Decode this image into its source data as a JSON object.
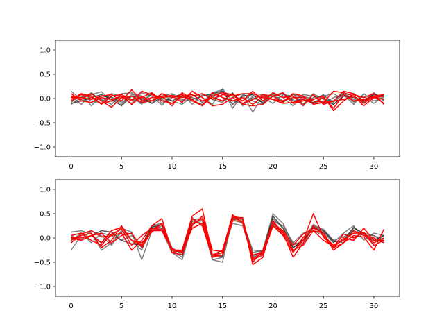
{
  "chart_data": [
    {
      "type": "line",
      "title": "",
      "xlabel": "",
      "ylabel": "",
      "xlim": [
        -1.55,
        32.55
      ],
      "ylim": [
        -1.2,
        1.2
      ],
      "xticks": [
        0,
        5,
        10,
        15,
        20,
        25,
        30
      ],
      "yticks": [
        -1.0,
        -0.5,
        0.0,
        0.5,
        1.0
      ],
      "xtick_labels": [
        "0",
        "5",
        "10",
        "15",
        "20",
        "25",
        "30"
      ],
      "ytick_labels": [
        "−1.0",
        "−0.5",
        "0.0",
        "0.5",
        "1.0"
      ],
      "grid": false,
      "x": [
        0,
        1,
        2,
        3,
        4,
        5,
        6,
        7,
        8,
        9,
        10,
        11,
        12,
        13,
        14,
        15,
        16,
        17,
        18,
        19,
        20,
        21,
        22,
        23,
        24,
        25,
        26,
        27,
        28,
        29,
        30,
        31
      ],
      "series": [
        {
          "color": "#555555",
          "values": [
            0.15,
            -0.02,
            0.12,
            -0.05,
            0.03,
            -0.08,
            0.05,
            -0.12,
            0.1,
            -0.02,
            -0.1,
            0.06,
            0.02,
            -0.08,
            0.12,
            0.18,
            -0.2,
            0.08,
            -0.28,
            0.05,
            0.08,
            -0.05,
            0.1,
            -0.12,
            0.02,
            0.06,
            -0.08,
            0.1,
            -0.02,
            -0.06,
            0.12,
            -0.05
          ]
        },
        {
          "color": "#555555",
          "values": [
            0.05,
            -0.12,
            0.08,
            0.14,
            -0.06,
            0.02,
            -0.1,
            0.12,
            0.05,
            -0.14,
            0.08,
            -0.05,
            0.15,
            0.02,
            -0.12,
            0.2,
            -0.05,
            -0.1,
            0.02,
            -0.08,
            0.1,
            0.02,
            -0.15,
            0.05,
            -0.02,
            0.08,
            -0.12,
            0.05,
            0.1,
            -0.05,
            0.02,
            0.08
          ]
        },
        {
          "color": "#555555",
          "values": [
            -0.08,
            0.1,
            -0.15,
            0.05,
            0.02,
            -0.12,
            0.08,
            0.05,
            -0.1,
            0.1,
            -0.05,
            -0.12,
            0.05,
            0.1,
            -0.02,
            -0.08,
            0.12,
            -0.15,
            0.05,
            0.02,
            -0.1,
            0.08,
            0.05,
            -0.12,
            0.1,
            -0.02,
            -0.05,
            0.12,
            -0.08,
            0.05,
            -0.1,
            0.05
          ]
        },
        {
          "color": "#555555",
          "values": [
            0.02,
            0.05,
            -0.05,
            -0.1,
            0.1,
            0.05,
            -0.02,
            -0.08,
            0.12,
            -0.1,
            0.02,
            0.1,
            -0.12,
            0.08,
            0.05,
            -0.05,
            0.02,
            0.1,
            -0.05,
            -0.12,
            0.05,
            -0.08,
            0.08,
            0.02,
            -0.1,
            0.05,
            0.1,
            -0.02,
            0.05,
            -0.08,
            0.1,
            -0.12
          ]
        },
        {
          "color": "#555555",
          "values": [
            -0.12,
            0.02,
            0.1,
            -0.02,
            -0.12,
            0.1,
            0.12,
            -0.02,
            -0.05,
            0.05,
            0.1,
            -0.02,
            -0.05,
            -0.12,
            0.08,
            0.12,
            0.05,
            -0.05,
            0.1,
            0.08,
            -0.02,
            0.05,
            -0.02,
            0.08,
            0.05,
            -0.1,
            0.02,
            0.08,
            -0.12,
            0.1,
            -0.05,
            0.02
          ]
        },
        {
          "color": "#222222",
          "values": [
            -0.1,
            -0.05,
            0.02,
            0.08,
            -0.02,
            -0.15,
            0.05,
            0.02,
            -0.1,
            0.02,
            -0.05,
            0.05,
            -0.02,
            0.05,
            0.1,
            0.15,
            -0.12,
            0.05,
            0.08,
            -0.1,
            0.05,
            0.1,
            -0.05,
            -0.02,
            -0.08,
            -0.05,
            -0.12,
            0.05,
            0.02,
            -0.05,
            0.08,
            0.05
          ]
        },
        {
          "color": "#ff0000",
          "values": [
            0.02,
            0.02,
            -0.02,
            0.05,
            0.08,
            -0.05,
            0.18,
            -0.05,
            0.02,
            0.05,
            0.06,
            0.02,
            0.05,
            0.1,
            -0.02,
            0.08,
            0.05,
            0.1,
            0.1,
            0.02,
            -0.02,
            -0.05,
            0.02,
            0.02,
            -0.05,
            -0.08,
            -0.05,
            0.15,
            0.1,
            -0.05,
            0.02,
            -0.02
          ]
        },
        {
          "color": "#ff0000",
          "values": [
            -0.05,
            0.08,
            0.02,
            -0.1,
            -0.05,
            0.05,
            -0.05,
            0.15,
            0.08,
            0.02,
            0.05,
            -0.08,
            0.15,
            0.02,
            -0.15,
            -0.12,
            0.02,
            -0.1,
            -0.02,
            0.08,
            0.05,
            0.12,
            -0.1,
            -0.05,
            -0.02,
            0.05,
            -0.25,
            -0.05,
            0.08,
            0.02,
            0.1,
            -0.12
          ]
        },
        {
          "color": "#ff0000",
          "values": [
            0.05,
            -0.02,
            0.1,
            -0.05,
            -0.18,
            0.02,
            0.05,
            -0.08,
            -0.05,
            0.1,
            0.02,
            0.08,
            -0.05,
            -0.15,
            0.05,
            0.12,
            0.08,
            -0.05,
            0.15,
            -0.05,
            0.12,
            0.02,
            0.05,
            -0.15,
            0.08,
            -0.12,
            -0.05,
            -0.02,
            0.05,
            -0.1,
            0.05,
            0.08
          ]
        },
        {
          "color": "#ff0000",
          "values": [
            -0.02,
            0.1,
            0.05,
            -0.12,
            0.05,
            0.08,
            -0.02,
            0.02,
            0.12,
            -0.05,
            -0.1,
            0.05,
            0.08,
            -0.05,
            0.02,
            -0.05,
            0.1,
            -0.12,
            -0.15,
            -0.12,
            0.05,
            -0.08,
            0.1,
            0.05,
            -0.12,
            -0.08,
            0.15,
            0.12,
            0.05,
            -0.15,
            0.02,
            0.05
          ]
        },
        {
          "color": "#ff0000",
          "values": [
            0.1,
            -0.05,
            -0.08,
            0.02,
            -0.02,
            0.05,
            -0.12,
            0.05,
            -0.05,
            0.05,
            -0.15,
            0.12,
            -0.02,
            -0.15,
            0.12,
            0.02,
            -0.05,
            0.02,
            -0.12,
            0.05,
            -0.02,
            -0.1,
            -0.08,
            -0.02,
            -0.1,
            0.02,
            -0.2,
            0.08,
            -0.05,
            -0.02,
            0.05,
            -0.1
          ]
        }
      ]
    },
    {
      "type": "line",
      "title": "",
      "xlabel": "",
      "ylabel": "",
      "xlim": [
        -1.55,
        32.55
      ],
      "ylim": [
        -1.2,
        1.2
      ],
      "xticks": [
        0,
        5,
        10,
        15,
        20,
        25,
        30
      ],
      "yticks": [
        -1.0,
        -0.5,
        0.0,
        0.5,
        1.0
      ],
      "xtick_labels": [
        "0",
        "5",
        "10",
        "15",
        "20",
        "25",
        "30"
      ],
      "ytick_labels": [
        "−1.0",
        "−0.5",
        "0.0",
        "0.5",
        "1.0"
      ],
      "grid": false,
      "x": [
        0,
        1,
        2,
        3,
        4,
        5,
        6,
        7,
        8,
        9,
        10,
        11,
        12,
        13,
        14,
        15,
        16,
        17,
        18,
        19,
        20,
        21,
        22,
        23,
        24,
        25,
        26,
        27,
        28,
        29,
        30,
        31
      ],
      "series": [
        {
          "color": "#555555",
          "values": [
            0.12,
            0.15,
            0.08,
            -0.1,
            0.05,
            0.2,
            0.12,
            -0.45,
            0.15,
            0.25,
            -0.25,
            -0.4,
            0.35,
            0.3,
            -0.45,
            -0.5,
            0.4,
            0.35,
            -0.3,
            -0.25,
            0.5,
            0.3,
            -0.15,
            -0.05,
            0.28,
            0.15,
            -0.05,
            -0.1,
            0.2,
            0.1,
            0.05,
            -0.05
          ]
        },
        {
          "color": "#555555",
          "values": [
            -0.25,
            0.05,
            0.1,
            -0.25,
            -0.1,
            0.15,
            -0.05,
            -0.25,
            0.25,
            0.3,
            -0.2,
            -0.35,
            0.42,
            0.25,
            -0.35,
            -0.3,
            0.38,
            0.3,
            -0.25,
            -0.28,
            0.35,
            0.25,
            -0.1,
            0.1,
            0.15,
            0.05,
            -0.15,
            -0.05,
            0.15,
            0.05,
            -0.1,
            0.05
          ]
        },
        {
          "color": "#555555",
          "values": [
            0.05,
            -0.05,
            0.15,
            0.05,
            -0.15,
            0.12,
            0.08,
            -0.2,
            0.2,
            0.15,
            -0.3,
            -0.45,
            0.28,
            0.38,
            -0.4,
            -0.3,
            0.3,
            0.25,
            -0.4,
            -0.3,
            0.28,
            0.12,
            -0.2,
            -0.05,
            0.2,
            0.12,
            -0.1,
            0.1,
            0.25,
            -0.05,
            0.1,
            0.05
          ]
        },
        {
          "color": "#555555",
          "values": [
            -0.05,
            0.1,
            -0.1,
            0.1,
            0.05,
            -0.05,
            0.05,
            -0.15,
            0.25,
            0.2,
            -0.25,
            -0.3,
            0.35,
            0.35,
            -0.45,
            -0.4,
            0.45,
            0.32,
            -0.38,
            -0.25,
            0.4,
            0.2,
            -0.1,
            -0.15,
            0.25,
            0.18,
            -0.05,
            0.02,
            0.15,
            0.05,
            0.05,
            -0.1
          ]
        },
        {
          "color": "#222222",
          "values": [
            0.02,
            -0.05,
            0.05,
            0.15,
            0.12,
            -0.05,
            -0.12,
            -0.15,
            0.22,
            0.28,
            -0.3,
            -0.35,
            0.38,
            0.4,
            -0.35,
            -0.38,
            0.42,
            0.38,
            -0.45,
            -0.3,
            0.45,
            0.2,
            -0.2,
            -0.05,
            0.22,
            0.15,
            -0.08,
            -0.05,
            0.22,
            0.08,
            -0.05,
            0.05
          ]
        },
        {
          "color": "#ff0000",
          "values": [
            0.0,
            -0.05,
            0.05,
            -0.1,
            0.15,
            0.22,
            -0.05,
            -0.15,
            0.18,
            0.28,
            -0.25,
            -0.25,
            0.45,
            0.6,
            -0.35,
            -0.25,
            0.45,
            0.4,
            -0.55,
            -0.4,
            0.35,
            0.05,
            -0.28,
            -0.05,
            0.5,
            0.02,
            -0.2,
            -0.1,
            0.05,
            0.02,
            -0.25,
            0.18
          ]
        },
        {
          "color": "#ff0000",
          "values": [
            -0.1,
            0.08,
            0.15,
            0.02,
            0.05,
            0.1,
            -0.25,
            -0.05,
            0.25,
            0.4,
            -0.3,
            -0.25,
            0.4,
            0.25,
            -0.38,
            -0.35,
            0.42,
            0.42,
            -0.5,
            -0.25,
            0.3,
            0.15,
            -0.15,
            0.08,
            0.2,
            0.1,
            -0.25,
            -0.1,
            0.15,
            0.05,
            0.0,
            -0.1
          ]
        },
        {
          "color": "#ff0000",
          "values": [
            0.05,
            0.1,
            -0.05,
            -0.15,
            0.08,
            0.18,
            -0.15,
            0.05,
            0.2,
            0.18,
            -0.22,
            -0.3,
            0.3,
            0.4,
            -0.35,
            -0.3,
            0.35,
            0.35,
            -0.35,
            -0.3,
            0.35,
            0.1,
            -0.4,
            -0.1,
            0.25,
            0.05,
            -0.15,
            -0.05,
            0.1,
            0.1,
            -0.15,
            -0.05
          ]
        },
        {
          "color": "#ff0000",
          "values": [
            -0.05,
            0.05,
            0.1,
            -0.2,
            -0.05,
            0.25,
            -0.05,
            -0.1,
            0.12,
            0.3,
            -0.3,
            -0.35,
            0.25,
            0.45,
            -0.25,
            -0.28,
            0.48,
            0.3,
            -0.45,
            -0.35,
            0.25,
            0.12,
            -0.25,
            -0.15,
            0.15,
            0.1,
            -0.2,
            0.0,
            -0.05,
            0.2,
            -0.05,
            -0.05
          ]
        },
        {
          "color": "#ff0000",
          "values": [
            0.02,
            0.0,
            0.05,
            0.1,
            -0.1,
            0.05,
            0.1,
            -0.2,
            0.15,
            0.15,
            -0.25,
            -0.28,
            0.2,
            0.3,
            -0.4,
            -0.35,
            0.38,
            0.4,
            -0.42,
            -0.32,
            0.25,
            0.05,
            -0.3,
            0.02,
            0.15,
            -0.05,
            -0.18,
            0.08,
            0.0,
            0.12,
            -0.1,
            0.0
          ]
        }
      ]
    }
  ]
}
